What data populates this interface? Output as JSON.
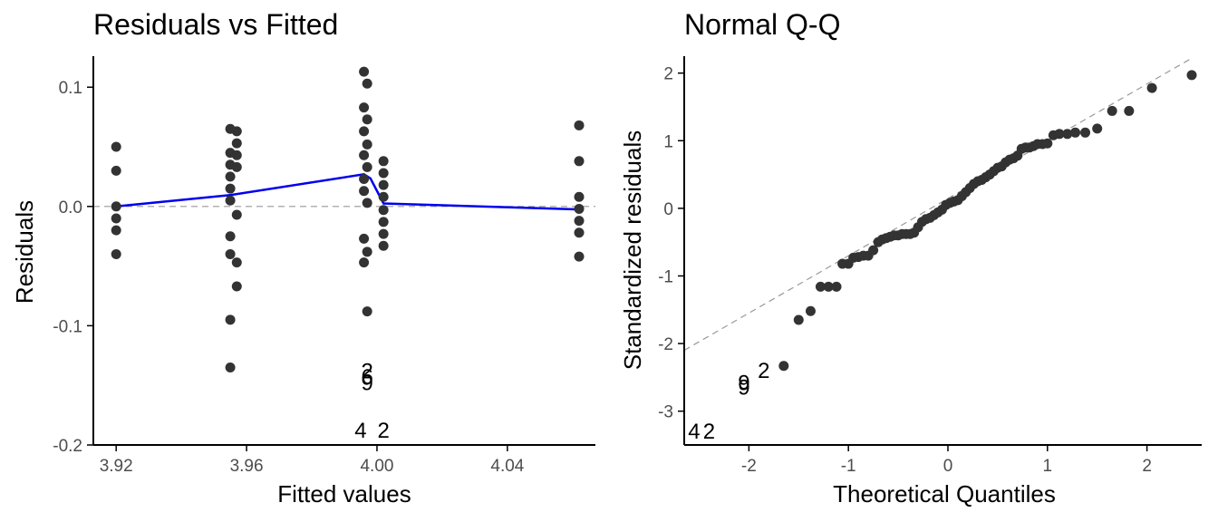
{
  "colors": {
    "points": "#333333",
    "smooth": "#0000ee",
    "reference": "#999999",
    "axis": "#000000",
    "tick_text": "#4d4d4d",
    "background": "#ffffff"
  },
  "chart_data": [
    {
      "type": "scatter",
      "title": "Residuals vs Fitted",
      "xlabel": "Fitted values",
      "ylabel": "Residuals",
      "xlim": [
        3.913,
        4.067
      ],
      "ylim": [
        -0.2,
        0.126
      ],
      "x_ticks": [
        3.92,
        3.96,
        4.0,
        4.04
      ],
      "x_tick_labels": [
        "3.92",
        "3.96",
        "4.00",
        "4.04"
      ],
      "y_ticks": [
        -0.2,
        -0.1,
        0.0,
        0.1
      ],
      "y_tick_labels": [
        "-0.2",
        "-0.1",
        "0.0",
        "0.1"
      ],
      "grid": false,
      "reference_line": {
        "type": "horizontal",
        "y": 0,
        "style": "dashed"
      },
      "smooth_line": {
        "x": [
          3.92,
          3.955,
          3.996,
          3.998,
          4.002,
          4.062
        ],
        "y": [
          0.0,
          0.0095,
          0.027,
          0.0235,
          0.0025,
          -0.0025
        ]
      },
      "points": [
        {
          "x": 3.92,
          "y": 0.05
        },
        {
          "x": 3.92,
          "y": 0.03
        },
        {
          "x": 3.92,
          "y": 0.0
        },
        {
          "x": 3.92,
          "y": -0.01
        },
        {
          "x": 3.92,
          "y": -0.02
        },
        {
          "x": 3.92,
          "y": -0.04
        },
        {
          "x": 3.955,
          "y": 0.065
        },
        {
          "x": 3.955,
          "y": 0.045
        },
        {
          "x": 3.955,
          "y": 0.035
        },
        {
          "x": 3.955,
          "y": 0.025
        },
        {
          "x": 3.955,
          "y": 0.015
        },
        {
          "x": 3.955,
          "y": 0.005
        },
        {
          "x": 3.955,
          "y": -0.025
        },
        {
          "x": 3.955,
          "y": -0.04
        },
        {
          "x": 3.955,
          "y": -0.095
        },
        {
          "x": 3.955,
          "y": -0.135
        },
        {
          "x": 3.957,
          "y": 0.063
        },
        {
          "x": 3.957,
          "y": 0.053
        },
        {
          "x": 3.957,
          "y": 0.043
        },
        {
          "x": 3.957,
          "y": 0.033
        },
        {
          "x": 3.957,
          "y": -0.007
        },
        {
          "x": 3.957,
          "y": -0.047
        },
        {
          "x": 3.957,
          "y": -0.067
        },
        {
          "x": 3.996,
          "y": 0.113
        },
        {
          "x": 3.996,
          "y": 0.083
        },
        {
          "x": 3.996,
          "y": 0.063
        },
        {
          "x": 3.996,
          "y": 0.043
        },
        {
          "x": 3.996,
          "y": 0.023
        },
        {
          "x": 3.996,
          "y": 0.013
        },
        {
          "x": 3.996,
          "y": -0.027
        },
        {
          "x": 3.996,
          "y": -0.047
        },
        {
          "x": 3.997,
          "y": 0.103
        },
        {
          "x": 3.997,
          "y": 0.073
        },
        {
          "x": 3.997,
          "y": 0.052
        },
        {
          "x": 3.997,
          "y": 0.033
        },
        {
          "x": 3.997,
          "y": 0.003
        },
        {
          "x": 3.997,
          "y": -0.038
        },
        {
          "x": 3.997,
          "y": -0.088
        },
        {
          "x": 4.002,
          "y": 0.038
        },
        {
          "x": 4.002,
          "y": 0.028
        },
        {
          "x": 4.002,
          "y": 0.018
        },
        {
          "x": 4.002,
          "y": 0.008
        },
        {
          "x": 4.002,
          "y": -0.003
        },
        {
          "x": 4.002,
          "y": -0.013
        },
        {
          "x": 4.002,
          "y": -0.023
        },
        {
          "x": 4.002,
          "y": -0.033
        },
        {
          "x": 4.062,
          "y": 0.068
        },
        {
          "x": 4.062,
          "y": 0.038
        },
        {
          "x": 4.062,
          "y": 0.008
        },
        {
          "x": 4.062,
          "y": -0.002
        },
        {
          "x": 4.062,
          "y": -0.012
        },
        {
          "x": 4.062,
          "y": -0.022
        },
        {
          "x": 4.062,
          "y": -0.042
        }
      ],
      "labeled_points": [
        {
          "label": "2",
          "x": 3.997,
          "y": -0.138
        },
        {
          "label": "6",
          "x": 3.997,
          "y": -0.143
        },
        {
          "label": "9",
          "x": 3.997,
          "y": -0.148
        },
        {
          "label": "4",
          "x": 3.995,
          "y": -0.188
        },
        {
          "label": "2",
          "x": 4.002,
          "y": -0.188
        }
      ]
    },
    {
      "type": "scatter",
      "title": "Normal Q-Q",
      "xlabel": "Theoretical Quantiles",
      "ylabel": "Standardized residuals",
      "xlim": [
        -2.65,
        2.55
      ],
      "ylim": [
        -3.5,
        2.25
      ],
      "x_ticks": [
        -2,
        -1,
        0,
        1,
        2
      ],
      "x_tick_labels": [
        "-2",
        "-1",
        "0",
        "1",
        "2"
      ],
      "y_ticks": [
        -3,
        -2,
        -1,
        0,
        1,
        2
      ],
      "y_tick_labels": [
        "-3",
        "-2",
        "-1",
        "0",
        "1",
        "2"
      ],
      "grid": false,
      "reference_line": {
        "type": "diagonal",
        "x": [
          -2.65,
          2.45
        ],
        "y": [
          -2.1,
          2.22
        ],
        "style": "dashed"
      },
      "points": [
        {
          "x": -1.65,
          "y": -2.33
        },
        {
          "x": -1.5,
          "y": -1.65
        },
        {
          "x": -1.38,
          "y": -1.52
        },
        {
          "x": -1.28,
          "y": -1.16
        },
        {
          "x": -1.2,
          "y": -1.16
        },
        {
          "x": -1.12,
          "y": -1.16
        },
        {
          "x": -1.06,
          "y": -0.82
        },
        {
          "x": -1.0,
          "y": -0.82
        },
        {
          "x": -0.95,
          "y": -0.73
        },
        {
          "x": -0.9,
          "y": -0.72
        },
        {
          "x": -0.85,
          "y": -0.7
        },
        {
          "x": -0.8,
          "y": -0.7
        },
        {
          "x": -0.75,
          "y": -0.62
        },
        {
          "x": -0.7,
          "y": -0.5
        },
        {
          "x": -0.66,
          "y": -0.46
        },
        {
          "x": -0.62,
          "y": -0.44
        },
        {
          "x": -0.58,
          "y": -0.42
        },
        {
          "x": -0.54,
          "y": -0.4
        },
        {
          "x": -0.5,
          "y": -0.4
        },
        {
          "x": -0.46,
          "y": -0.38
        },
        {
          "x": -0.42,
          "y": -0.38
        },
        {
          "x": -0.38,
          "y": -0.38
        },
        {
          "x": -0.34,
          "y": -0.36
        },
        {
          "x": -0.3,
          "y": -0.28
        },
        {
          "x": -0.26,
          "y": -0.2
        },
        {
          "x": -0.22,
          "y": -0.16
        },
        {
          "x": -0.18,
          "y": -0.14
        },
        {
          "x": -0.14,
          "y": -0.1
        },
        {
          "x": -0.1,
          "y": -0.06
        },
        {
          "x": -0.06,
          "y": -0.02
        },
        {
          "x": -0.02,
          "y": 0.05
        },
        {
          "x": 0.02,
          "y": 0.08
        },
        {
          "x": 0.06,
          "y": 0.1
        },
        {
          "x": 0.1,
          "y": 0.12
        },
        {
          "x": 0.14,
          "y": 0.18
        },
        {
          "x": 0.18,
          "y": 0.24
        },
        {
          "x": 0.22,
          "y": 0.3
        },
        {
          "x": 0.26,
          "y": 0.36
        },
        {
          "x": 0.3,
          "y": 0.4
        },
        {
          "x": 0.34,
          "y": 0.42
        },
        {
          "x": 0.38,
          "y": 0.46
        },
        {
          "x": 0.42,
          "y": 0.5
        },
        {
          "x": 0.46,
          "y": 0.55
        },
        {
          "x": 0.5,
          "y": 0.6
        },
        {
          "x": 0.54,
          "y": 0.62
        },
        {
          "x": 0.58,
          "y": 0.68
        },
        {
          "x": 0.62,
          "y": 0.72
        },
        {
          "x": 0.66,
          "y": 0.74
        },
        {
          "x": 0.7,
          "y": 0.78
        },
        {
          "x": 0.74,
          "y": 0.88
        },
        {
          "x": 0.78,
          "y": 0.9
        },
        {
          "x": 0.82,
          "y": 0.9
        },
        {
          "x": 0.86,
          "y": 0.92
        },
        {
          "x": 0.9,
          "y": 0.95
        },
        {
          "x": 0.95,
          "y": 0.95
        },
        {
          "x": 1.0,
          "y": 0.96
        },
        {
          "x": 1.06,
          "y": 1.08
        },
        {
          "x": 1.12,
          "y": 1.1
        },
        {
          "x": 1.2,
          "y": 1.1
        },
        {
          "x": 1.28,
          "y": 1.12
        },
        {
          "x": 1.38,
          "y": 1.12
        },
        {
          "x": 1.5,
          "y": 1.18
        },
        {
          "x": 1.65,
          "y": 1.44
        },
        {
          "x": 1.82,
          "y": 1.44
        },
        {
          "x": 2.05,
          "y": 1.78
        },
        {
          "x": 2.45,
          "y": 1.97
        }
      ],
      "labeled_points": [
        {
          "label": "9",
          "x": -2.05,
          "y": -2.58
        },
        {
          "label": "9",
          "x": -2.05,
          "y": -2.65
        },
        {
          "label": "2",
          "x": -1.85,
          "y": -2.4
        },
        {
          "label": "4",
          "x": -2.55,
          "y": -3.3
        },
        {
          "label": "2",
          "x": -2.4,
          "y": -3.3
        }
      ]
    }
  ]
}
